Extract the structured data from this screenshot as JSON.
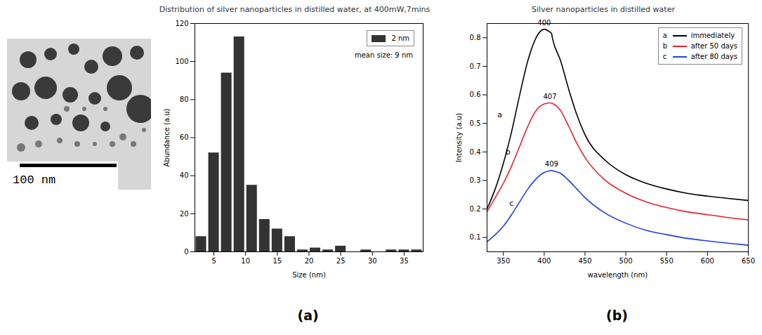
{
  "chart_data": [
    {
      "type": "histogram",
      "title": "Distribution of silver nanoparticles in distilled water, at 400mW,7mins",
      "x_label": "Size (nm)",
      "y_label": "Abundance (a.u)",
      "bins": [
        2,
        4,
        6,
        8,
        10,
        12,
        14,
        16,
        18,
        20,
        22,
        24,
        26,
        28,
        30,
        32,
        34,
        36,
        38
      ],
      "series": [
        {
          "name": "2 nm",
          "color": "#333333",
          "values": [
            8,
            52,
            94,
            113,
            35,
            17,
            12,
            8,
            1,
            2,
            1,
            3,
            0,
            1,
            0,
            1,
            1,
            1
          ]
        }
      ],
      "xlim": [
        2,
        38
      ],
      "xticks": [
        5,
        10,
        15,
        20,
        25,
        30,
        35
      ],
      "ylim": [
        0,
        120
      ],
      "yticks": [
        0,
        20,
        40,
        60,
        80,
        100,
        120
      ],
      "legend": "top-right",
      "annotations": [
        {
          "text": "mean size: 9 nm"
        }
      ]
    },
    {
      "type": "line",
      "title": "Silver nanoparticles in distilled water",
      "x_label": "wavelength (nm)",
      "y_label": "Intensity (a.u)",
      "x": [
        330,
        340,
        350,
        360,
        370,
        380,
        390,
        400,
        407,
        409,
        410,
        420,
        430,
        440,
        450,
        475,
        500,
        525,
        550,
        575,
        600,
        625,
        650
      ],
      "series": [
        {
          "name": "immediately",
          "label": "a",
          "color": "#000000",
          "values": [
            0.2,
            0.27,
            0.36,
            0.47,
            0.6,
            0.72,
            0.8,
            0.83,
            0.82,
            0.815,
            0.8,
            0.72,
            0.62,
            0.53,
            0.46,
            0.37,
            0.32,
            0.29,
            0.27,
            0.255,
            0.245,
            0.237,
            0.23
          ]
        },
        {
          "name": "after 50 days",
          "label": "b",
          "color": "#e8202a",
          "values": [
            0.19,
            0.24,
            0.29,
            0.35,
            0.42,
            0.49,
            0.545,
            0.568,
            0.572,
            0.571,
            0.57,
            0.545,
            0.49,
            0.43,
            0.38,
            0.3,
            0.255,
            0.225,
            0.205,
            0.19,
            0.18,
            0.17,
            0.162
          ]
        },
        {
          "name": "after 80 days",
          "label": "c",
          "color": "#1f3fe0",
          "values": [
            0.085,
            0.11,
            0.14,
            0.18,
            0.225,
            0.27,
            0.305,
            0.328,
            0.334,
            0.335,
            0.334,
            0.325,
            0.3,
            0.27,
            0.24,
            0.185,
            0.15,
            0.125,
            0.11,
            0.097,
            0.088,
            0.08,
            0.073
          ]
        }
      ],
      "xlim": [
        330,
        650
      ],
      "xticks": [
        350,
        400,
        450,
        500,
        550,
        600,
        650
      ],
      "ylim": [
        0.05,
        0.85
      ],
      "yticks": [
        0.1,
        0.2,
        0.3,
        0.4,
        0.5,
        0.6,
        0.7,
        0.8
      ],
      "legend": "top-right",
      "annotations": [
        {
          "text": "400",
          "x": 400,
          "y": 0.83
        },
        {
          "text": "407",
          "x": 407,
          "y": 0.572
        },
        {
          "text": "409",
          "x": 409,
          "y": 0.335
        },
        {
          "text": "a",
          "x": 352,
          "y": 0.53
        },
        {
          "text": "b",
          "x": 362,
          "y": 0.4
        },
        {
          "text": "c",
          "x": 366,
          "y": 0.22
        }
      ]
    }
  ],
  "image": {
    "scale_bar": "100 nm"
  },
  "panel_labels": [
    "(a)",
    "(b)"
  ]
}
